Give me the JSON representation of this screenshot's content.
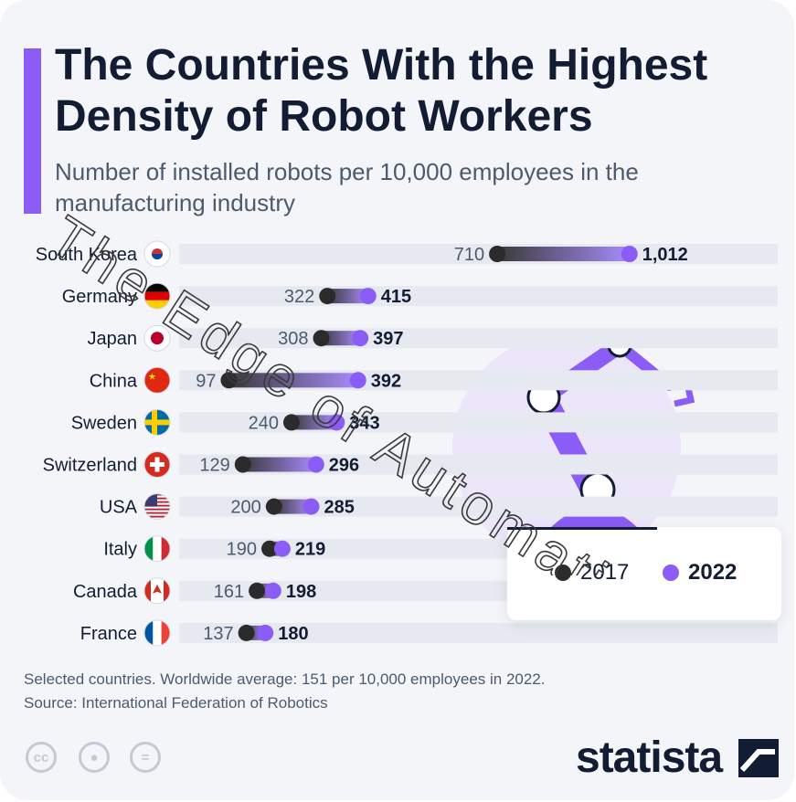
{
  "header": {
    "title": "The Countries With the Highest Density of Robot Workers",
    "subtitle": "Number of installed robots per 10,000 employees in the manufacturing industry"
  },
  "chart_data": {
    "type": "dumbbell",
    "series": [
      {
        "name": "2017",
        "color": "#2b2b2b"
      },
      {
        "name": "2022",
        "color": "#8b5cf6"
      }
    ],
    "rows": [
      {
        "country": "South Korea",
        "flag": "south-korea-flag",
        "v2017": 710,
        "v2022": 1012,
        "label2017": "710",
        "label2022": "1,012"
      },
      {
        "country": "Germany",
        "flag": "germany-flag",
        "v2017": 322,
        "v2022": 415,
        "label2017": "322",
        "label2022": "415"
      },
      {
        "country": "Japan",
        "flag": "japan-flag",
        "v2017": 308,
        "v2022": 397,
        "label2017": "308",
        "label2022": "397"
      },
      {
        "country": "China",
        "flag": "china-flag",
        "v2017": 97,
        "v2022": 392,
        "label2017": "97",
        "label2022": "392"
      },
      {
        "country": "Sweden",
        "flag": "sweden-flag",
        "v2017": 240,
        "v2022": 343,
        "label2017": "240",
        "label2022": "343"
      },
      {
        "country": "Switzerland",
        "flag": "switzerland-flag",
        "v2017": 129,
        "v2022": 296,
        "label2017": "129",
        "label2022": "296"
      },
      {
        "country": "USA",
        "flag": "usa-flag",
        "v2017": 200,
        "v2022": 285,
        "label2017": "200",
        "label2022": "285"
      },
      {
        "country": "Italy",
        "flag": "italy-flag",
        "v2017": 190,
        "v2022": 219,
        "label2017": "190",
        "label2022": "219"
      },
      {
        "country": "Canada",
        "flag": "canada-flag",
        "v2017": 161,
        "v2022": 198,
        "label2017": "161",
        "label2022": "198"
      },
      {
        "country": "France",
        "flag": "france-flag",
        "v2017": 137,
        "v2022": 180,
        "label2017": "137",
        "label2022": "180"
      }
    ],
    "xlim": [
      0,
      1012
    ]
  },
  "legend": {
    "label_2017": "2017",
    "label_2022": "2022"
  },
  "footer": {
    "note": "Selected countries. Worldwide average: 151 per 10,000 employees in 2022.",
    "source": "Source: International Federation of Robotics",
    "brand": "statista",
    "license_icons": [
      "cc-icon",
      "by-icon",
      "nd-icon"
    ]
  },
  "watermark": {
    "text": "The Edge of Automation"
  },
  "colors": {
    "accent": "#8b5cf6",
    "dark": "#121c32",
    "track": "#e6e9f0",
    "dot2017": "#2b2b2b"
  }
}
